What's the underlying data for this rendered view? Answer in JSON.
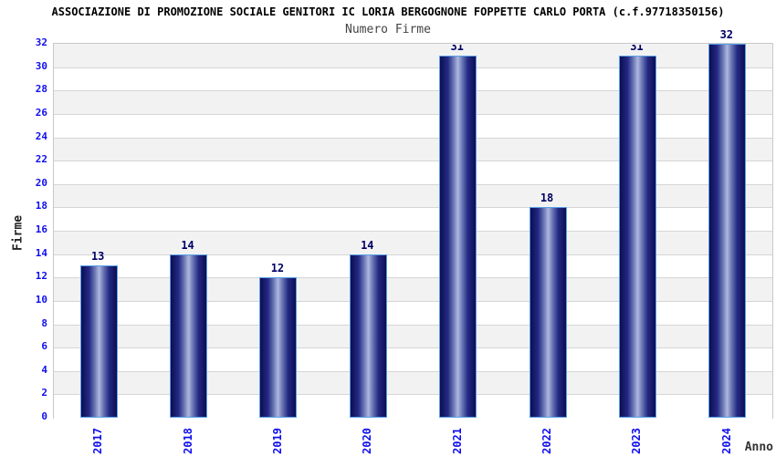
{
  "chart_data": {
    "type": "bar",
    "title": "ASSOCIAZIONE DI PROMOZIONE SOCIALE GENITORI IC LORIA BERGOGNONE FOPPETTE CARLO PORTA (c.f.97718350156)",
    "subtitle": "Numero Firme",
    "xlabel": "Anno",
    "ylabel": "Firme",
    "categories": [
      "2017",
      "2018",
      "2019",
      "2020",
      "2021",
      "2022",
      "2023",
      "2024"
    ],
    "values": [
      13,
      14,
      12,
      14,
      31,
      18,
      31,
      32
    ],
    "ylim": [
      0,
      32
    ],
    "ytick_step": 2,
    "legend": "none",
    "grid": "horizontal-bands-alternating",
    "colors": {
      "tick_label": "#0f0fee",
      "bar_value_label": "#000066",
      "bar_edge_dark": "#0d0d52",
      "bar_center_light": "#aeb8e0",
      "bar_border": "#58a0e6",
      "band_gray": "#f2f2f2",
      "band_white": "#ffffff",
      "gridline": "#d5d5d5",
      "plot_border": "#c9c9c9",
      "title_color": "#000000",
      "subtitle_color": "#444444"
    }
  }
}
